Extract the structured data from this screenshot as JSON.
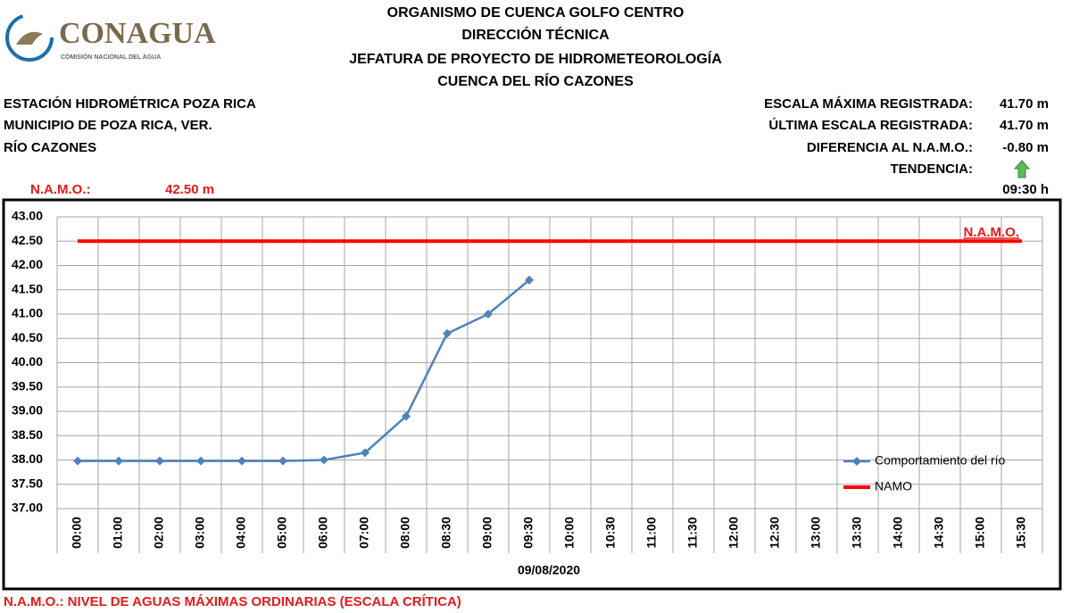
{
  "header": {
    "logo_name": "CONAGUA",
    "logo_subtitle": "COMISIÓN NACIONAL DEL AGUA",
    "lines": [
      "ORGANISMO DE CUENCA GOLFO CENTRO",
      "DIRECCIÓN TÉCNICA",
      "JEFATURA DE PROYECTO DE HIDROMETEOROLOGÍA",
      "CUENCA DEL RÍO CAZONES"
    ]
  },
  "station": [
    "ESTACIÓN HIDROMÉTRICA POZA RICA",
    "MUNICIPIO DE POZA RICA, VER.",
    "RÍO CAZONES"
  ],
  "summary": [
    {
      "label": "ESCALA MÁXIMA REGISTRADA:",
      "value": "41.70 m"
    },
    {
      "label": "ÚLTIMA ESCALA REGISTRADA:",
      "value": "41.70 m"
    },
    {
      "label": "DIFERENCIA AL N.A.M.O.:",
      "value": "-0.80 m"
    },
    {
      "label": "TENDENCIA:"
    }
  ],
  "namo": {
    "label": "N.A.M.O.:",
    "value": "42.50 m"
  },
  "time": "09:30 h",
  "footer": "N.A.M.O.: NIVEL DE AGUAS MÁXIMAS ORDINARIAS (ESCALA CRÍTICA)",
  "chart_data": {
    "type": "line",
    "categories": [
      "00:00",
      "01:00",
      "02:00",
      "03:00",
      "04:00",
      "05:00",
      "06:00",
      "07:00",
      "08:00",
      "08:30",
      "09:00",
      "09:30",
      "10:00",
      "10:30",
      "11:00",
      "11:30",
      "12:00",
      "12:30",
      "13:00",
      "13:30",
      "14:00",
      "14:30",
      "15:00",
      "15:30"
    ],
    "series": [
      {
        "name": "Comportamiento del río",
        "color": "#4f81bd",
        "values": [
          37.98,
          37.98,
          37.98,
          37.98,
          37.98,
          37.98,
          38.0,
          38.15,
          38.9,
          40.6,
          41.0,
          41.7,
          null,
          null,
          null,
          null,
          null,
          null,
          null,
          null,
          null,
          null,
          null,
          null
        ]
      },
      {
        "name": "NAMO",
        "color": "#ff0000",
        "values": [
          42.5,
          42.5,
          42.5,
          42.5,
          42.5,
          42.5,
          42.5,
          42.5,
          42.5,
          42.5,
          42.5,
          42.5,
          42.5,
          42.5,
          42.5,
          42.5,
          42.5,
          42.5,
          42.5,
          42.5,
          42.5,
          42.5,
          42.5,
          42.5
        ]
      }
    ],
    "annotation": "N.A.M.O.",
    "xlabel": "09/08/2020",
    "ylim": [
      37,
      43
    ],
    "yticks": [
      {
        "value": 37,
        "label": "37.00"
      },
      {
        "value": 37.5,
        "label": "37.50"
      },
      {
        "value": 38,
        "label": "38.00"
      },
      {
        "value": 38.5,
        "label": "38.50"
      },
      {
        "value": 39,
        "label": "39.00"
      },
      {
        "value": 39.5,
        "label": "39.50"
      },
      {
        "value": 40,
        "label": "40.00"
      },
      {
        "value": 40.5,
        "label": "40.50"
      },
      {
        "value": 41,
        "label": "41.00"
      },
      {
        "value": 41.5,
        "label": "41.50"
      },
      {
        "value": 42,
        "label": "42.00"
      },
      {
        "value": 42.5,
        "label": "42.50"
      },
      {
        "value": 43,
        "label": "43.00"
      }
    ],
    "grid": true
  }
}
